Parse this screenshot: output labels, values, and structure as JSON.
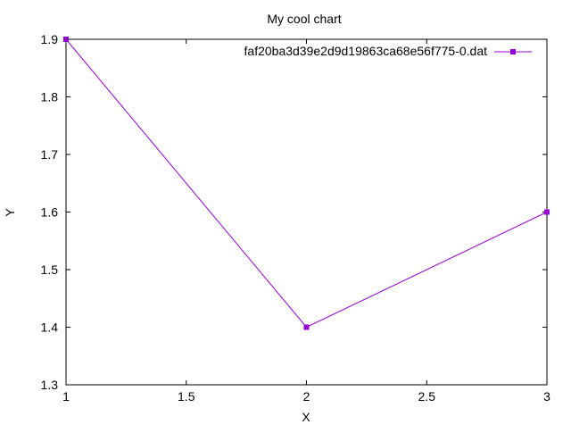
{
  "chart_data": {
    "type": "line",
    "title": "My cool chart",
    "xlabel": "X",
    "ylabel": "Y",
    "xlim": [
      1,
      3
    ],
    "ylim": [
      1.3,
      1.9
    ],
    "x_ticks": [
      1,
      1.5,
      2,
      2.5,
      3
    ],
    "x_tick_labels": [
      "1",
      "1.5",
      "2",
      "2.5",
      "3"
    ],
    "y_ticks": [
      1.3,
      1.4,
      1.5,
      1.6,
      1.7,
      1.8,
      1.9
    ],
    "y_tick_labels": [
      "1.3",
      "1.4",
      "1.5",
      "1.6",
      "1.7",
      "1.8",
      "1.9"
    ],
    "grid": false,
    "legend_position": "top-right",
    "series": [
      {
        "name": "faf20ba3d39e2d9d19863ca68e56f775-0.dat",
        "color": "#9400d3",
        "marker": "square",
        "x": [
          1,
          2,
          3
        ],
        "y": [
          1.9,
          1.4,
          1.6
        ]
      }
    ]
  }
}
